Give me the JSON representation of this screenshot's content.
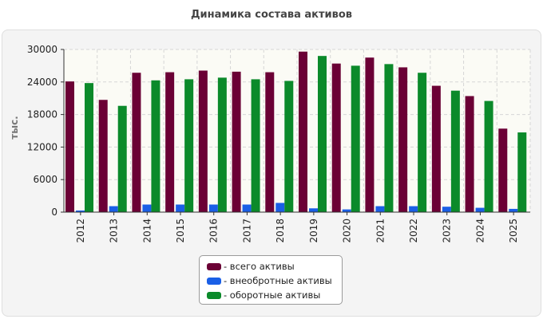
{
  "chart_data": {
    "type": "bar",
    "title": "Динамика состава активов",
    "ylabel": "тыс.",
    "xlabel": "",
    "ylim": [
      0,
      30000
    ],
    "yticks": [
      0,
      6000,
      12000,
      18000,
      24000,
      30000
    ],
    "grid": true,
    "legend_position": "bottom-center",
    "categories": [
      "2012",
      "2013",
      "2014",
      "2015",
      "2016",
      "2017",
      "2018",
      "2019",
      "2020",
      "2021",
      "2022",
      "2023",
      "2024",
      "2025"
    ],
    "series": [
      {
        "name": "- всего активы",
        "color": "#6b0035",
        "values": [
          24100,
          20700,
          25700,
          25800,
          26100,
          25900,
          25800,
          29600,
          27400,
          28500,
          26700,
          23300,
          21400,
          15400
        ]
      },
      {
        "name": "- внеобротные активы",
        "color": "#1a5fe6",
        "values": [
          300,
          1100,
          1400,
          1400,
          1400,
          1400,
          1700,
          700,
          500,
          1100,
          1100,
          1000,
          800,
          600
        ]
      },
      {
        "name": "- оборотные активы",
        "color": "#0b8a2a",
        "values": [
          23800,
          19600,
          24300,
          24500,
          24800,
          24500,
          24200,
          28800,
          27000,
          27300,
          25700,
          22400,
          20500,
          14700
        ]
      }
    ]
  }
}
